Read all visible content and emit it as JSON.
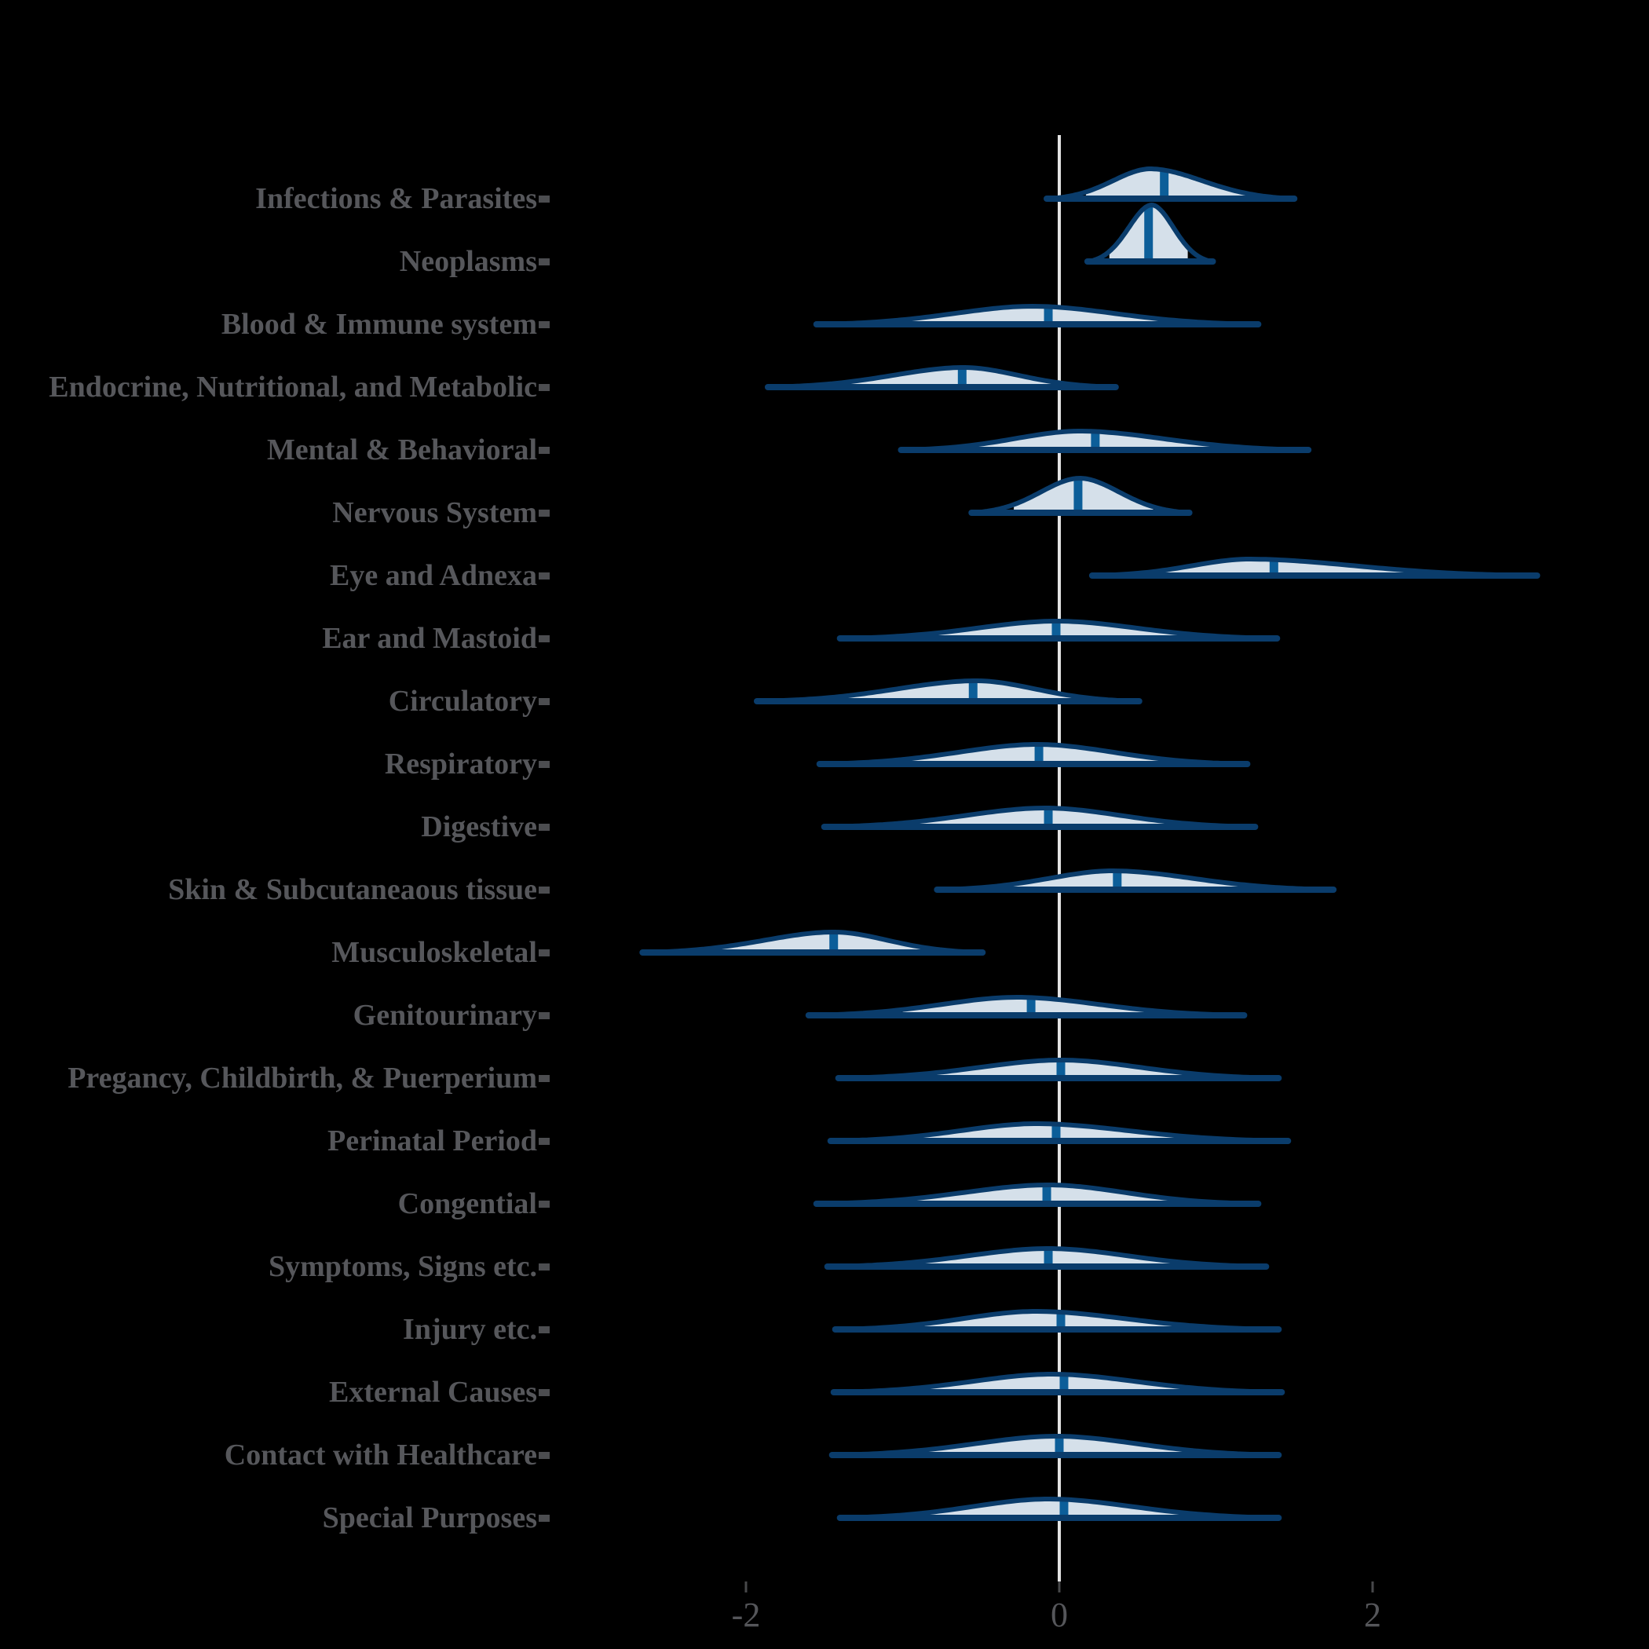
{
  "figure": {
    "background": "#000000",
    "title": ""
  },
  "style": {
    "violin_fill": "#d5e0ea",
    "violin_outline": "#0a3c6b",
    "median_line": "#0c5e99",
    "reference_line": "#e3e3e3",
    "category_label_color": "#56575b",
    "axis_tick_color": "#47484a",
    "axis_label_color": "#55565a"
  },
  "chart_data": {
    "type": "area",
    "subtype": "ridgeline-halfeye-density",
    "title": "",
    "xlabel": "",
    "ylabel": "",
    "grid": "off",
    "legend": "none",
    "reference_line_x": 0,
    "x_axis": {
      "ticks": [
        -2,
        0,
        2
      ],
      "tick_labels": [
        "-2",
        "0",
        "2"
      ],
      "range": [
        -3.6,
        3.6
      ]
    },
    "categories": [
      "Infections & Parasites",
      "Neoplasms",
      "Blood & Immune system",
      "Endocrine, Nutritional, and Metabolic",
      "Mental & Behavioral",
      "Nervous System",
      "Eye and Adnexa",
      "Ear and Mastoid",
      "Circulatory",
      "Respiratory",
      "Digestive",
      "Skin & Subcutaneaous tissue",
      "Musculoskeletal",
      "Genitourinary",
      "Pregancy, Childbirth, & Puerperium",
      "Perinatal Period",
      "Congential",
      "Symptoms, Signs etc.",
      "Injury etc.",
      "External Causes",
      "Contact with Healthcare",
      "Special Purposes"
    ],
    "series": [
      {
        "label": "Infections & Parasites",
        "range": [
          -0.07,
          1.49
        ],
        "interval": [
          0.17,
          1.19
        ],
        "median": 0.67,
        "mode": 0.58,
        "peak_h": 38
      },
      {
        "label": "Neoplasms",
        "range": [
          0.19,
          0.97
        ],
        "interval": [
          0.32,
          0.82
        ],
        "median": 0.57,
        "mode": 0.59,
        "peak_h": 72
      },
      {
        "label": "Blood & Immune system",
        "range": [
          -1.54,
          1.26
        ],
        "interval": [
          -0.97,
          0.75
        ],
        "median": -0.07,
        "mode": -0.17,
        "peak_h": 23
      },
      {
        "label": "Endocrine, Nutritional, and Metabolic",
        "range": [
          -1.85,
          0.35
        ],
        "interval": [
          -1.39,
          0.03
        ],
        "median": -0.62,
        "mode": -0.61,
        "peak_h": 25
      },
      {
        "label": "Mental & Behavioral",
        "range": [
          -1.0,
          1.58
        ],
        "interval": [
          -0.53,
          1.07
        ],
        "median": 0.23,
        "mode": 0.13,
        "peak_h": 24
      },
      {
        "label": "Nervous System",
        "range": [
          -0.55,
          0.82
        ],
        "interval": [
          -0.29,
          0.6
        ],
        "median": 0.12,
        "mode": 0.13,
        "peak_h": 44
      },
      {
        "label": "Eye and Adnexa",
        "range": [
          0.22,
          3.04
        ],
        "interval": [
          0.57,
          2.44
        ],
        "median": 1.37,
        "mode": 1.21,
        "peak_h": 21
      },
      {
        "label": "Ear and Mastoid",
        "range": [
          -1.39,
          1.38
        ],
        "interval": [
          -0.85,
          0.84
        ],
        "median": -0.02,
        "mode": -0.02,
        "peak_h": 22
      },
      {
        "label": "Circulatory",
        "range": [
          -1.92,
          0.5
        ],
        "interval": [
          -1.38,
          0.17
        ],
        "median": -0.55,
        "mode": -0.53,
        "peak_h": 26
      },
      {
        "label": "Respiratory",
        "range": [
          -1.52,
          1.19
        ],
        "interval": [
          -0.98,
          0.72
        ],
        "median": -0.13,
        "mode": -0.14,
        "peak_h": 25
      },
      {
        "label": "Digestive",
        "range": [
          -1.49,
          1.24
        ],
        "interval": [
          -0.93,
          0.75
        ],
        "median": -0.07,
        "mode": -0.09,
        "peak_h": 24
      },
      {
        "label": "Skin & Subcutaneaous tissue",
        "range": [
          -0.77,
          1.74
        ],
        "interval": [
          -0.36,
          1.21
        ],
        "median": 0.37,
        "mode": 0.34,
        "peak_h": 24
      },
      {
        "label": "Musculoskeletal",
        "range": [
          -2.65,
          -0.5
        ],
        "interval": [
          -2.17,
          -0.79
        ],
        "median": -1.44,
        "mode": -1.44,
        "peak_h": 26
      },
      {
        "label": "Genitourinary",
        "range": [
          -1.59,
          1.17
        ],
        "interval": [
          -1.0,
          0.68
        ],
        "median": -0.18,
        "mode": -0.27,
        "peak_h": 23
      },
      {
        "label": "Pregancy, Childbirth, & Puerperium",
        "range": [
          -1.4,
          1.39
        ],
        "interval": [
          -0.85,
          0.84
        ],
        "median": 0.01,
        "mode": 0.01,
        "peak_h": 23
      },
      {
        "label": "Perinatal Period",
        "range": [
          -1.45,
          1.45
        ],
        "interval": [
          -0.88,
          0.88
        ],
        "median": -0.02,
        "mode": -0.15,
        "peak_h": 22
      },
      {
        "label": "Congential",
        "range": [
          -1.54,
          1.26
        ],
        "interval": [
          -0.96,
          0.72
        ],
        "median": -0.08,
        "mode": -0.07,
        "peak_h": 24
      },
      {
        "label": "Symptoms, Signs etc.",
        "range": [
          -1.47,
          1.31
        ],
        "interval": [
          -0.91,
          0.77
        ],
        "median": -0.07,
        "mode": -0.07,
        "peak_h": 23
      },
      {
        "label": "Injury etc.",
        "range": [
          -1.42,
          1.39
        ],
        "interval": [
          -0.86,
          0.85
        ],
        "median": 0.01,
        "mode": -0.15,
        "peak_h": 23
      },
      {
        "label": "External Causes",
        "range": [
          -1.43,
          1.41
        ],
        "interval": [
          -0.88,
          0.87
        ],
        "median": 0.03,
        "mode": -0.05,
        "peak_h": 23
      },
      {
        "label": "Contact with Healthcare",
        "range": [
          -1.44,
          1.39
        ],
        "interval": [
          -0.89,
          0.86
        ],
        "median": 0.0,
        "mode": -0.02,
        "peak_h": 24
      },
      {
        "label": "Special Purposes",
        "range": [
          -1.39,
          1.39
        ],
        "interval": [
          -0.86,
          0.86
        ],
        "median": 0.03,
        "mode": -0.07,
        "peak_h": 24
      }
    ]
  }
}
